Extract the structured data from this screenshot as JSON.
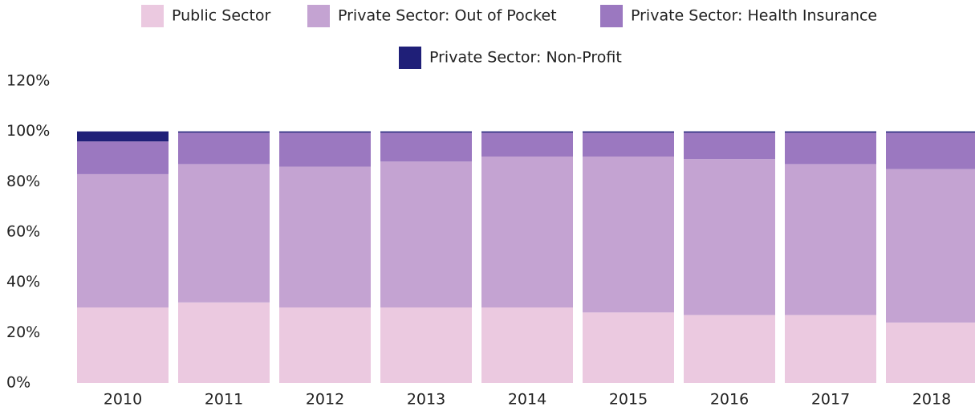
{
  "chart_data": {
    "type": "stacked_bar",
    "categories": [
      "2010",
      "2011",
      "2012",
      "2013",
      "2014",
      "2015",
      "2016",
      "2017",
      "2018"
    ],
    "series": [
      {
        "name": "Public Sector",
        "color": "#ebc9e0",
        "values": [
          30,
          32,
          30,
          30,
          30,
          28,
          27,
          27,
          24
        ]
      },
      {
        "name": "Private Sector: Out of Pocket",
        "color": "#c4a3d2",
        "values": [
          53,
          55,
          56,
          58,
          60,
          62,
          62,
          60,
          61
        ]
      },
      {
        "name": "Private Sector: Health Insurance",
        "color": "#9b78c0",
        "values": [
          13,
          12.5,
          13.5,
          11.5,
          9.5,
          9.5,
          10.5,
          12.5,
          14.5
        ]
      },
      {
        "name": "Private Sector: Non-Profit",
        "color": "#1f1f78",
        "values": [
          4,
          0.5,
          0.5,
          0.5,
          0.5,
          0.5,
          0.5,
          0.5,
          0.5
        ]
      }
    ],
    "ylim": [
      0,
      120
    ],
    "yticks": [
      {
        "value": 0,
        "label": "0%"
      },
      {
        "value": 20,
        "label": "20%"
      },
      {
        "value": 40,
        "label": "40%"
      },
      {
        "value": 60,
        "label": "60%"
      },
      {
        "value": 80,
        "label": "80%"
      },
      {
        "value": 100,
        "label": "100%"
      },
      {
        "value": 120,
        "label": "120%"
      }
    ],
    "legend": "top"
  }
}
